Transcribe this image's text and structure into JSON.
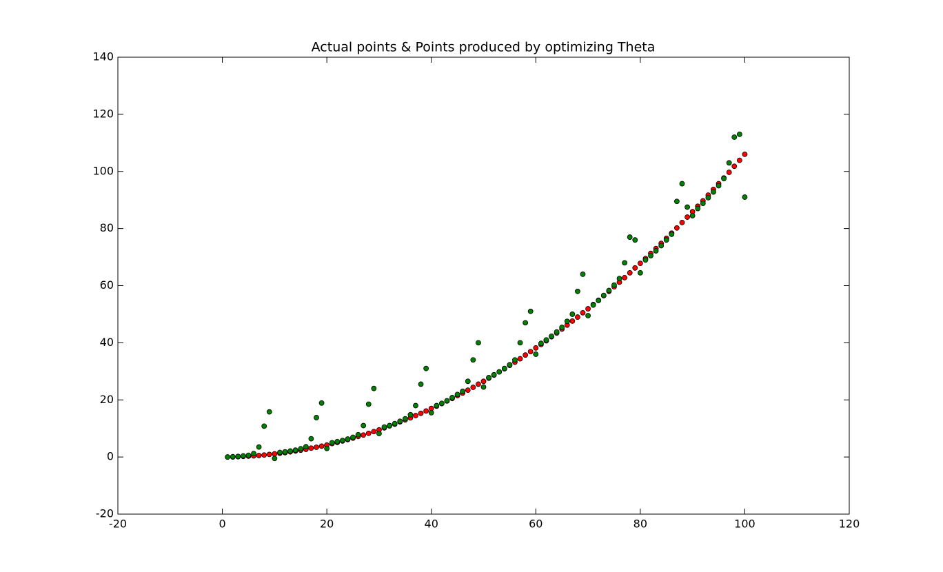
{
  "chart_data": {
    "type": "scatter",
    "title": "Actual points & Points produced by optimizing Theta",
    "xlim": [
      -20,
      120
    ],
    "ylim": [
      -20,
      140
    ],
    "xticks": [
      -20,
      0,
      20,
      40,
      60,
      80,
      100,
      120
    ],
    "yticks": [
      -20,
      0,
      20,
      40,
      60,
      80,
      100,
      120,
      140
    ],
    "series": [
      {
        "color": "#ff0000",
        "x": [
          1,
          2,
          3,
          4,
          5,
          6,
          7,
          8,
          9,
          10,
          11,
          12,
          13,
          14,
          15,
          16,
          17,
          18,
          19,
          20,
          21,
          22,
          23,
          24,
          25,
          26,
          27,
          28,
          29,
          30,
          31,
          32,
          33,
          34,
          35,
          36,
          37,
          38,
          39,
          40,
          41,
          42,
          43,
          44,
          45,
          46,
          47,
          48,
          49,
          50,
          51,
          52,
          53,
          54,
          55,
          56,
          57,
          58,
          59,
          60,
          61,
          62,
          63,
          64,
          65,
          66,
          67,
          68,
          69,
          70,
          71,
          72,
          73,
          74,
          75,
          76,
          77,
          78,
          79,
          80,
          81,
          82,
          83,
          84,
          85,
          86,
          87,
          88,
          89,
          90,
          91,
          92,
          93,
          94,
          95,
          96,
          97,
          98,
          99,
          100
        ],
        "values": [
          0.0,
          0.0,
          0.1,
          0.2,
          0.3,
          0.4,
          0.5,
          0.7,
          0.9,
          1.1,
          1.3,
          1.5,
          1.8,
          2.1,
          2.4,
          2.7,
          3.1,
          3.4,
          3.8,
          4.2,
          4.7,
          5.1,
          5.6,
          6.1,
          6.6,
          7.2,
          7.7,
          8.3,
          8.9,
          9.5,
          10.2,
          10.9,
          11.5,
          12.3,
          13.0,
          13.7,
          14.5,
          15.3,
          16.1,
          17.0,
          17.8,
          18.7,
          19.6,
          20.5,
          21.5,
          22.4,
          23.4,
          24.4,
          25.5,
          26.5,
          27.6,
          28.7,
          29.8,
          30.9,
          32.1,
          33.2,
          34.4,
          35.7,
          36.9,
          38.2,
          39.4,
          40.7,
          42.1,
          43.4,
          44.8,
          46.2,
          47.6,
          49.0,
          50.5,
          51.9,
          53.4,
          54.9,
          56.5,
          58.0,
          59.6,
          61.2,
          62.8,
          64.5,
          66.2,
          67.8,
          69.5,
          71.3,
          73.0,
          74.8,
          76.6,
          78.4,
          80.2,
          82.1,
          84.0,
          85.9,
          87.8,
          89.7,
          91.7,
          93.7,
          95.7,
          97.7,
          99.7,
          101.8,
          103.9,
          106.0
        ]
      },
      {
        "color": "#008000",
        "x": [
          1,
          2,
          3,
          4,
          5,
          6,
          7,
          8,
          9,
          10,
          11,
          12,
          13,
          14,
          15,
          16,
          17,
          18,
          19,
          20,
          21,
          22,
          23,
          24,
          25,
          26,
          27,
          28,
          29,
          30,
          31,
          32,
          33,
          34,
          35,
          36,
          37,
          38,
          39,
          40,
          41,
          42,
          43,
          44,
          45,
          46,
          47,
          48,
          49,
          50,
          51,
          52,
          53,
          54,
          55,
          56,
          57,
          58,
          59,
          60,
          61,
          62,
          63,
          64,
          65,
          66,
          67,
          68,
          69,
          70,
          71,
          72,
          73,
          74,
          75,
          76,
          77,
          78,
          79,
          80,
          81,
          82,
          83,
          84,
          85,
          86,
          87,
          88,
          89,
          90,
          91,
          92,
          93,
          94,
          95,
          96,
          97,
          98,
          99,
          100
        ],
        "values": [
          0.0,
          0.1,
          0.2,
          0.4,
          0.6,
          1.2,
          3.5,
          10.8,
          15.8,
          -0.5,
          1.6,
          1.8,
          2.1,
          2.4,
          2.9,
          3.6,
          6.4,
          13.8,
          18.9,
          3.0,
          5.0,
          5.4,
          5.8,
          6.3,
          6.9,
          7.8,
          11.0,
          18.5,
          24.0,
          8.2,
          10.5,
          11.0,
          11.7,
          12.5,
          13.4,
          14.8,
          18.0,
          25.5,
          31.0,
          15.5,
          18.0,
          18.8,
          19.7,
          20.8,
          21.9,
          23.0,
          26.5,
          34.0,
          40.0,
          24.5,
          27.8,
          28.8,
          29.8,
          31.0,
          32.3,
          34.0,
          40.0,
          47.0,
          51.0,
          36.0,
          39.8,
          41.0,
          42.3,
          43.8,
          45.4,
          47.5,
          50.0,
          58.0,
          64.0,
          49.5,
          53.2,
          54.8,
          56.6,
          58.3,
          60.2,
          62.5,
          68.0,
          77.0,
          76.0,
          64.5,
          69.0,
          70.5,
          72.2,
          74.0,
          76.0,
          78.0,
          89.5,
          95.7,
          87.5,
          84.5,
          87.0,
          88.8,
          90.8,
          92.8,
          95.0,
          97.5,
          103.0,
          112.0,
          113.0,
          91.0
        ]
      }
    ]
  }
}
